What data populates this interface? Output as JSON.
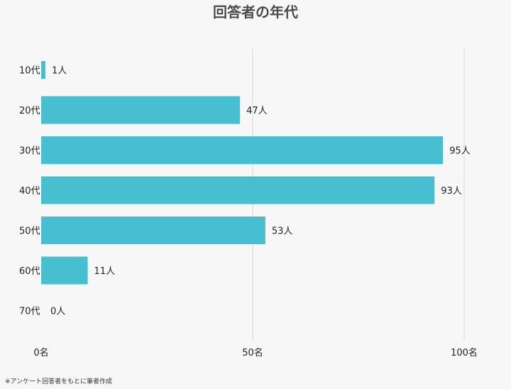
{
  "chart_data": {
    "type": "bar",
    "orientation": "horizontal",
    "title": "回答者の年代",
    "categories": [
      "10代",
      "20代",
      "30代",
      "40代",
      "50代",
      "60代",
      "70代"
    ],
    "values": [
      1,
      47,
      95,
      93,
      53,
      11,
      0
    ],
    "value_labels": [
      "1人",
      "47人",
      "95人",
      "93人",
      "53人",
      "11人",
      "0人"
    ],
    "xlim": [
      0,
      100
    ],
    "x_ticks": [
      0,
      50,
      100
    ],
    "x_tick_labels": [
      "0名",
      "50名",
      "100名"
    ],
    "bar_color": "#48bfd1",
    "grid": "vertical",
    "xlabel": "",
    "ylabel": ""
  },
  "footnote": "※アンケート回答者をもとに筆者作成"
}
